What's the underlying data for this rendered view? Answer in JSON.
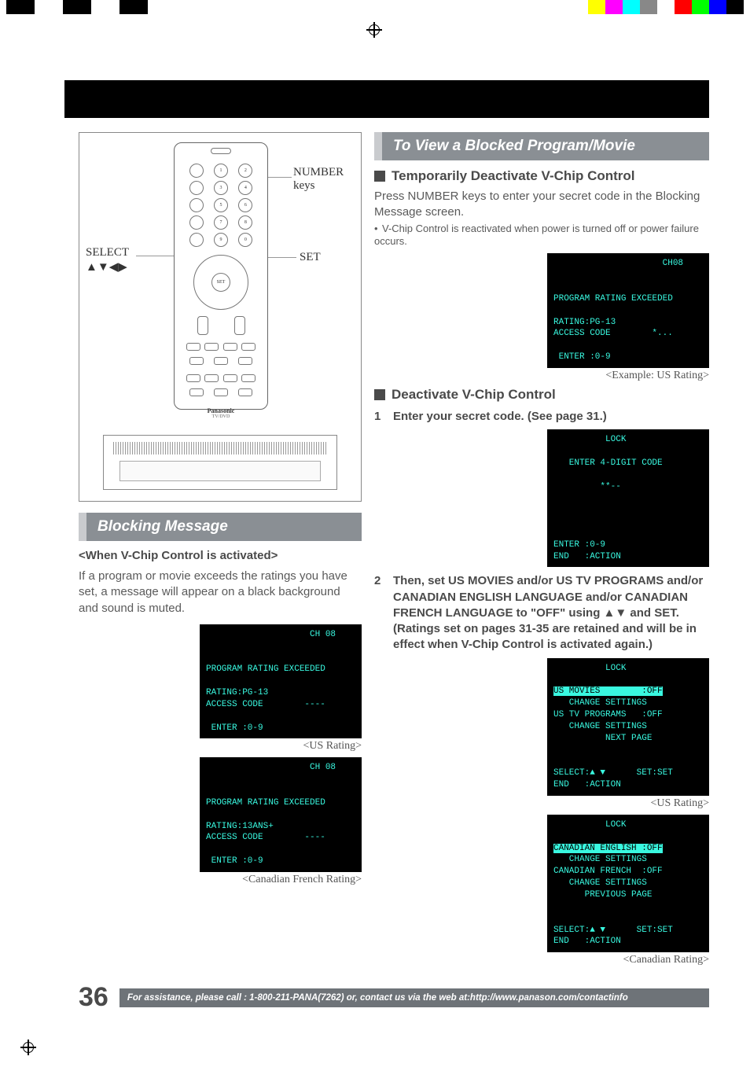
{
  "colorbar_top_left": [
    "#000000",
    "#ffffff",
    "#000000",
    "#ffffff",
    "#000000"
  ],
  "colorbar_top_right": [
    "#ffff00",
    "#ff00ff",
    "#00ffff",
    "#888888",
    "#ffffff",
    "#ff0000",
    "#00ff00",
    "#0000ff",
    "#000000"
  ],
  "remote": {
    "label_select": "SELECT\n▲▼◀▶",
    "label_number": "NUMBER\nkeys",
    "label_set": "SET",
    "brand": "Panasonic",
    "model": "TV/DVD"
  },
  "blocking": {
    "bar": "Blocking Message",
    "sub": "<When V-Chip Control is activated>",
    "body": "If a program or movie exceeds the ratings you have set, a message will appear on a black background and sound is muted.",
    "osd_us": "                    CH 08\n\n\nPROGRAM RATING EXCEEDED\n\nRATING:PG-13\nACCESS CODE        ----\n\n ENTER :0-9",
    "cap_us": "<US Rating>",
    "osd_ca": "                    CH 08\n\n\nPROGRAM RATING EXCEEDED\n\nRATING:13ANS+\nACCESS CODE        ----\n\n ENTER :0-9",
    "cap_ca": "<Canadian French Rating>"
  },
  "view": {
    "bar": "To View a Blocked Program/Movie",
    "h1": "Temporarily Deactivate V-Chip Control",
    "body1": "Press NUMBER keys to enter your secret code in the Blocking Message screen.",
    "note1": "V-Chip Control is reactivated when power is turned off or power failure occurs.",
    "osd_example": "                     CH08\n\n\nPROGRAM RATING EXCEEDED\n\nRATING:PG-13\nACCESS CODE        *...\n\n ENTER :0-9",
    "cap_example": "<Example: US Rating>",
    "h2": "Deactivate V-Chip Control",
    "step1": "Enter your secret code. (See page 31.)",
    "osd_lock1": "          LOCK\n\n   ENTER 4-DIGIT CODE\n\n         **--\n\n\n\n\nENTER :0-9\nEND   :ACTION",
    "step2": "Then, set US MOVIES and/or US TV PROGRAMS and/or CANADIAN ENGLISH LANGUAGE and/or CANADIAN FRENCH LANGUAGE to \"OFF\" using ▲▼ and SET. (Ratings set on pages 31-35 are retained and will be in effect when V-Chip Control is activated again.)",
    "osd_us_menu_pre": "          LOCK\n\n",
    "osd_us_menu_hl": "US MOVIES        :OFF",
    "osd_us_menu_post": "\n   CHANGE SETTINGS\nUS TV PROGRAMS   :OFF\n   CHANGE SETTINGS\n          NEXT PAGE\n\n\nSELECT:▲ ▼      SET:SET\nEND   :ACTION",
    "cap_us_menu": "<US Rating>",
    "osd_ca_menu_pre": "          LOCK\n\n",
    "osd_ca_menu_hl": "CANADIAN ENGLISH :OFF",
    "osd_ca_menu_post": "\n   CHANGE SETTINGS\nCANADIAN FRENCH  :OFF\n   CHANGE SETTINGS\n      PREVIOUS PAGE\n\n\nSELECT:▲ ▼      SET:SET\nEND   :ACTION",
    "cap_ca_menu": "<Canadian Rating>"
  },
  "footer": {
    "page": "36",
    "assist": "For assistance, please call : 1-800-211-PANA(7262) or, contact us via the web at:http://www.panason.com/contactinfo"
  },
  "colors": {
    "section_bar_bg": "#8a8f94",
    "section_bar_accent": "#c9cbce",
    "osd_text": "#39f8e0",
    "body_text": "#5a5a5a",
    "heading_text": "#4a4a4a",
    "assist_bg": "#6e7378"
  }
}
